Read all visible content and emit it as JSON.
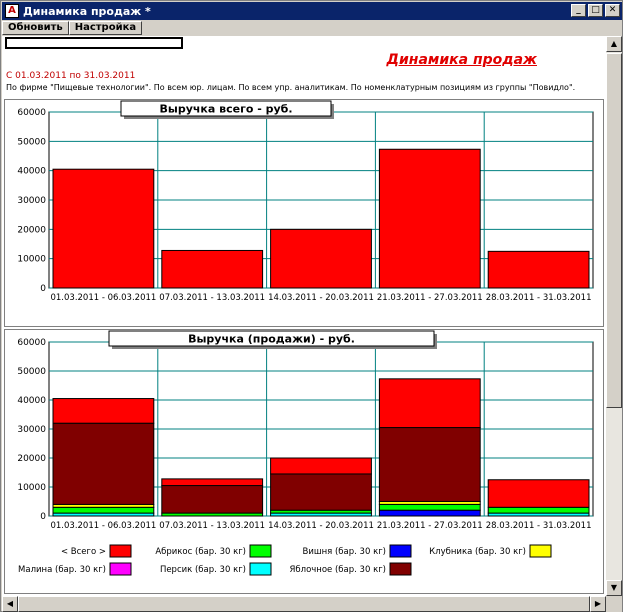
{
  "window": {
    "title": "Динамика продаж  *"
  },
  "toolbar": {
    "refresh_label": "Обновить",
    "settings_label": "Настройка"
  },
  "report": {
    "title": "Динамика продаж",
    "period": "С 01.03.2011 по 31.03.2011",
    "filter": "По фирме \"Пищевые технологии\". По всем юр. лицам. По всем упр. аналитикам. По номенклатурным позициям из группы \"Повидло\"."
  },
  "colors": {
    "total": "#ff0000",
    "apricot": "#00ff00",
    "cherry": "#0000ff",
    "strawberry": "#ffff00",
    "raspberry": "#ff00ff",
    "peach": "#00ffff",
    "apple": "#800000",
    "grid": "#008080"
  },
  "chart_data": [
    {
      "type": "bar",
      "title": "Выручка всего - руб.",
      "categories": [
        "01.03.2011 - 06.03.2011",
        "07.03.2011 - 13.03.2011",
        "14.03.2011 - 20.03.2011",
        "21.03.2011 - 27.03.2011",
        "28.03.2011 - 31.03.2011"
      ],
      "values": [
        40500,
        12800,
        20000,
        47300,
        12500
      ],
      "yticks": [
        "60000",
        "50000",
        "40000",
        "30000",
        "20000",
        "10000",
        "0"
      ],
      "ylim": [
        0,
        60000
      ],
      "xlabel": "",
      "ylabel": ""
    },
    {
      "type": "bar",
      "stacked": true,
      "title": "Выручка (продажи) - руб.",
      "categories": [
        "01.03.2011 - 06.03.2011",
        "07.03.2011 - 13.03.2011",
        "14.03.2011 - 20.03.2011",
        "21.03.2011 - 27.03.2011",
        "28.03.2011 - 31.03.2011"
      ],
      "yticks": [
        "60000",
        "50000",
        "40000",
        "30000",
        "20000",
        "10000",
        "0"
      ],
      "ylim": [
        0,
        60000
      ],
      "series": [
        {
          "name": "Персик (бар. 30 кг)",
          "key": "peach",
          "values": [
            1000,
            0,
            1000,
            0,
            1000
          ]
        },
        {
          "name": "Вишня (бар. 30 кг)",
          "key": "cherry",
          "values": [
            0,
            0,
            0,
            2000,
            0
          ]
        },
        {
          "name": "Абрикос (бар. 30 кг)",
          "key": "apricot",
          "values": [
            2000,
            1000,
            1000,
            2000,
            2000
          ]
        },
        {
          "name": "Клубника (бар. 30 кг)",
          "key": "strawberry",
          "values": [
            1000,
            0,
            0,
            1000,
            0
          ]
        },
        {
          "name": "Яблочное (бар. 30 кг)",
          "key": "apple",
          "values": [
            28000,
            9500,
            12500,
            25500,
            0
          ]
        },
        {
          "name": "Малина (бар. 30 кг)",
          "key": "raspberry",
          "values": [
            0,
            0,
            0,
            0,
            0
          ]
        },
        {
          "name": "Всего",
          "key": "total",
          "values": [
            8500,
            2300,
            5500,
            16800,
            9500
          ]
        }
      ],
      "legend": [
        {
          "label": "<  Всего  >",
          "key": "total"
        },
        {
          "label": "Абрикос (бар. 30 кг)",
          "key": "apricot"
        },
        {
          "label": "Вишня (бар. 30 кг)",
          "key": "cherry"
        },
        {
          "label": "Клубника (бар. 30 кг)",
          "key": "strawberry"
        },
        {
          "label": "Малина (бар. 30 кг)",
          "key": "raspberry"
        },
        {
          "label": "Персик (бар. 30 кг)",
          "key": "peach"
        },
        {
          "label": "Яблочное (бар. 30 кг)",
          "key": "apple"
        }
      ]
    }
  ]
}
